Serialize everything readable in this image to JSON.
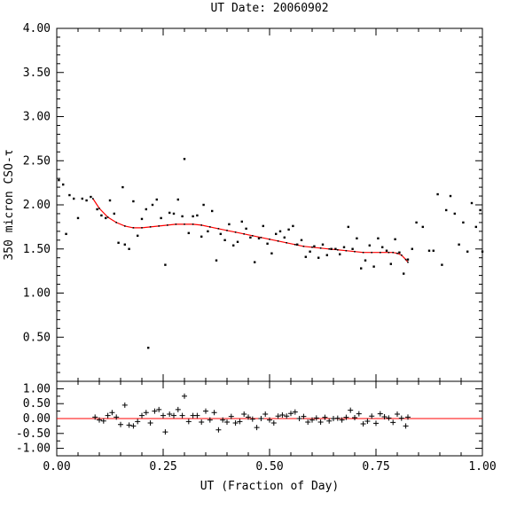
{
  "chart_data": [
    {
      "type": "scatter",
      "title": "UT Date: 20060902",
      "ylabel": "350 micron CSO-τ",
      "xlim": [
        0,
        1
      ],
      "ylim": [
        0,
        4
      ],
      "yticks": [
        "0.50",
        "1.00",
        "1.50",
        "2.00",
        "2.50",
        "3.00",
        "3.50",
        "4.00"
      ],
      "series": [
        {
          "role": "measurements",
          "marker": "dot",
          "color": "#000000",
          "points": [
            [
              0.005,
              2.28
            ],
            [
              0.015,
              2.23
            ],
            [
              0.022,
              1.67
            ],
            [
              0.03,
              2.11
            ],
            [
              0.04,
              2.07
            ],
            [
              0.05,
              1.85
            ],
            [
              0.06,
              2.07
            ],
            [
              0.07,
              2.05
            ],
            [
              0.08,
              2.09
            ],
            [
              0.095,
              1.95
            ],
            [
              0.105,
              1.88
            ],
            [
              0.115,
              1.85
            ],
            [
              0.125,
              2.05
            ],
            [
              0.135,
              1.9
            ],
            [
              0.145,
              1.57
            ],
            [
              0.155,
              2.2
            ],
            [
              0.16,
              1.55
            ],
            [
              0.17,
              1.5
            ],
            [
              0.18,
              2.04
            ],
            [
              0.19,
              1.65
            ],
            [
              0.2,
              1.84
            ],
            [
              0.21,
              1.95
            ],
            [
              0.215,
              0.38
            ],
            [
              0.225,
              2.0
            ],
            [
              0.235,
              2.06
            ],
            [
              0.245,
              1.85
            ],
            [
              0.255,
              1.32
            ],
            [
              0.265,
              1.91
            ],
            [
              0.275,
              1.9
            ],
            [
              0.285,
              2.06
            ],
            [
              0.295,
              1.87
            ],
            [
              0.3,
              2.52
            ],
            [
              0.31,
              1.68
            ],
            [
              0.32,
              1.87
            ],
            [
              0.33,
              1.88
            ],
            [
              0.34,
              1.64
            ],
            [
              0.345,
              2.0
            ],
            [
              0.355,
              1.7
            ],
            [
              0.365,
              1.93
            ],
            [
              0.375,
              1.37
            ],
            [
              0.385,
              1.67
            ],
            [
              0.395,
              1.6
            ],
            [
              0.405,
              1.78
            ],
            [
              0.415,
              1.54
            ],
            [
              0.425,
              1.58
            ],
            [
              0.435,
              1.81
            ],
            [
              0.445,
              1.73
            ],
            [
              0.455,
              1.63
            ],
            [
              0.465,
              1.35
            ],
            [
              0.475,
              1.62
            ],
            [
              0.485,
              1.76
            ],
            [
              0.495,
              1.56
            ],
            [
              0.505,
              1.45
            ],
            [
              0.515,
              1.67
            ],
            [
              0.525,
              1.7
            ],
            [
              0.535,
              1.63
            ],
            [
              0.545,
              1.72
            ],
            [
              0.555,
              1.76
            ],
            [
              0.565,
              1.55
            ],
            [
              0.575,
              1.6
            ],
            [
              0.585,
              1.41
            ],
            [
              0.595,
              1.47
            ],
            [
              0.605,
              1.53
            ],
            [
              0.615,
              1.4
            ],
            [
              0.625,
              1.55
            ],
            [
              0.635,
              1.43
            ],
            [
              0.645,
              1.5
            ],
            [
              0.655,
              1.5
            ],
            [
              0.665,
              1.44
            ],
            [
              0.675,
              1.52
            ],
            [
              0.685,
              1.75
            ],
            [
              0.695,
              1.5
            ],
            [
              0.705,
              1.62
            ],
            [
              0.715,
              1.28
            ],
            [
              0.725,
              1.37
            ],
            [
              0.735,
              1.54
            ],
            [
              0.745,
              1.3
            ],
            [
              0.755,
              1.62
            ],
            [
              0.765,
              1.52
            ],
            [
              0.775,
              1.48
            ],
            [
              0.785,
              1.33
            ],
            [
              0.795,
              1.61
            ],
            [
              0.805,
              1.46
            ],
            [
              0.815,
              1.22
            ],
            [
              0.825,
              1.38
            ],
            [
              0.835,
              1.5
            ],
            [
              0.845,
              1.8
            ],
            [
              0.86,
              1.75
            ],
            [
              0.875,
              1.48
            ],
            [
              0.885,
              1.48
            ],
            [
              0.895,
              2.12
            ],
            [
              0.905,
              1.32
            ],
            [
              0.915,
              1.94
            ],
            [
              0.925,
              2.1
            ],
            [
              0.935,
              1.9
            ],
            [
              0.945,
              1.55
            ],
            [
              0.955,
              1.8
            ],
            [
              0.965,
              1.47
            ],
            [
              0.975,
              2.02
            ],
            [
              0.985,
              1.75
            ],
            [
              0.995,
              1.94
            ],
            [
              1.0,
              1.47
            ]
          ]
        },
        {
          "role": "fit",
          "marker": "line",
          "color": "#ff0000",
          "points": [
            [
              0.085,
              2.07
            ],
            [
              0.1,
              1.96
            ],
            [
              0.12,
              1.86
            ],
            [
              0.14,
              1.8
            ],
            [
              0.16,
              1.76
            ],
            [
              0.18,
              1.74
            ],
            [
              0.2,
              1.74
            ],
            [
              0.22,
              1.75
            ],
            [
              0.24,
              1.76
            ],
            [
              0.26,
              1.77
            ],
            [
              0.28,
              1.78
            ],
            [
              0.3,
              1.78
            ],
            [
              0.32,
              1.78
            ],
            [
              0.34,
              1.77
            ],
            [
              0.36,
              1.75
            ],
            [
              0.38,
              1.73
            ],
            [
              0.4,
              1.71
            ],
            [
              0.42,
              1.69
            ],
            [
              0.44,
              1.67
            ],
            [
              0.46,
              1.65
            ],
            [
              0.48,
              1.63
            ],
            [
              0.5,
              1.61
            ],
            [
              0.52,
              1.59
            ],
            [
              0.54,
              1.57
            ],
            [
              0.56,
              1.55
            ],
            [
              0.58,
              1.53
            ],
            [
              0.6,
              1.52
            ],
            [
              0.62,
              1.51
            ],
            [
              0.64,
              1.5
            ],
            [
              0.66,
              1.49
            ],
            [
              0.68,
              1.48
            ],
            [
              0.7,
              1.47
            ],
            [
              0.72,
              1.46
            ],
            [
              0.74,
              1.46
            ],
            [
              0.76,
              1.46
            ],
            [
              0.78,
              1.46
            ],
            [
              0.79,
              1.46
            ],
            [
              0.8,
              1.45
            ],
            [
              0.81,
              1.43
            ],
            [
              0.82,
              1.38
            ],
            [
              0.825,
              1.35
            ]
          ]
        }
      ]
    },
    {
      "type": "scatter",
      "xlabel": "UT (Fraction of Day)",
      "xlim": [
        0,
        1
      ],
      "ylim": [
        -1.25,
        1.25
      ],
      "xticks": [
        "0.00",
        "0.25",
        "0.50",
        "0.75",
        "1.00"
      ],
      "yticks": [
        "1.00",
        "0.50",
        "0.00",
        "-0.50",
        "-1.00"
      ],
      "series": [
        {
          "role": "residuals",
          "marker": "plus",
          "color": "#000000",
          "points": [
            [
              0.09,
              0.05
            ],
            [
              0.1,
              -0.05
            ],
            [
              0.11,
              -0.08
            ],
            [
              0.12,
              0.1
            ],
            [
              0.13,
              0.2
            ],
            [
              0.14,
              0.05
            ],
            [
              0.15,
              -0.2
            ],
            [
              0.16,
              0.45
            ],
            [
              0.17,
              -0.22
            ],
            [
              0.18,
              -0.25
            ],
            [
              0.19,
              -0.1
            ],
            [
              0.2,
              0.1
            ],
            [
              0.21,
              0.2
            ],
            [
              0.22,
              -0.15
            ],
            [
              0.23,
              0.25
            ],
            [
              0.24,
              0.3
            ],
            [
              0.25,
              0.1
            ],
            [
              0.255,
              -0.45
            ],
            [
              0.265,
              0.15
            ],
            [
              0.275,
              0.1
            ],
            [
              0.285,
              0.3
            ],
            [
              0.295,
              0.1
            ],
            [
              0.3,
              0.75
            ],
            [
              0.31,
              -0.1
            ],
            [
              0.32,
              0.1
            ],
            [
              0.33,
              0.1
            ],
            [
              0.34,
              -0.12
            ],
            [
              0.35,
              0.25
            ],
            [
              0.36,
              -0.05
            ],
            [
              0.37,
              0.2
            ],
            [
              0.38,
              -0.38
            ],
            [
              0.39,
              -0.05
            ],
            [
              0.4,
              -0.12
            ],
            [
              0.41,
              0.07
            ],
            [
              0.42,
              -0.15
            ],
            [
              0.43,
              -0.1
            ],
            [
              0.44,
              0.15
            ],
            [
              0.45,
              0.05
            ],
            [
              0.46,
              -0.02
            ],
            [
              0.47,
              -0.3
            ],
            [
              0.48,
              0.0
            ],
            [
              0.49,
              0.15
            ],
            [
              0.5,
              -0.05
            ],
            [
              0.51,
              -0.15
            ],
            [
              0.52,
              0.08
            ],
            [
              0.53,
              0.12
            ],
            [
              0.54,
              0.08
            ],
            [
              0.55,
              0.17
            ],
            [
              0.56,
              0.22
            ],
            [
              0.57,
              0.0
            ],
            [
              0.58,
              0.07
            ],
            [
              0.59,
              -0.12
            ],
            [
              0.6,
              -0.05
            ],
            [
              0.61,
              0.02
            ],
            [
              0.62,
              -0.12
            ],
            [
              0.63,
              0.04
            ],
            [
              0.64,
              -0.08
            ],
            [
              0.65,
              0.0
            ],
            [
              0.66,
              0.01
            ],
            [
              0.67,
              -0.05
            ],
            [
              0.68,
              0.04
            ],
            [
              0.69,
              0.28
            ],
            [
              0.7,
              0.03
            ],
            [
              0.71,
              0.16
            ],
            [
              0.72,
              -0.18
            ],
            [
              0.73,
              -0.09
            ],
            [
              0.74,
              0.08
            ],
            [
              0.75,
              -0.16
            ],
            [
              0.76,
              0.16
            ],
            [
              0.77,
              0.06
            ],
            [
              0.78,
              0.02
            ],
            [
              0.79,
              -0.13
            ],
            [
              0.8,
              0.15
            ],
            [
              0.81,
              0.01
            ],
            [
              0.82,
              -0.25
            ],
            [
              0.825,
              0.05
            ]
          ]
        },
        {
          "role": "zero-line",
          "marker": "line",
          "color": "#ff0000",
          "points": [
            [
              0,
              0
            ],
            [
              1,
              0
            ]
          ]
        }
      ]
    }
  ]
}
